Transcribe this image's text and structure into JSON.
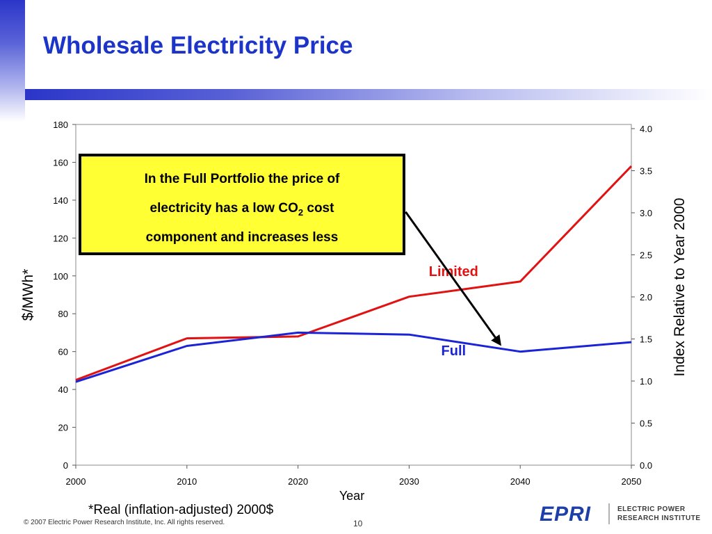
{
  "slide": {
    "title": "Wholesale Electricity Price",
    "footnote": "*Real (inflation-adjusted) 2000$",
    "copyright": "© 2007 Electric Power Research Institute, Inc. All rights reserved.",
    "page_number": "10",
    "logo": {
      "mark": "EPRI",
      "line1": "ELECTRIC POWER",
      "line2": "RESEARCH INSTITUTE"
    }
  },
  "callout": {
    "line1": "In the Full Portfolio the price of",
    "line2_prefix": "electricity has a low CO",
    "line2_sub": "2",
    "line2_suffix": " cost",
    "line3": "component and increases less"
  },
  "chart_data": {
    "type": "line",
    "x": [
      2000,
      2010,
      2020,
      2030,
      2040,
      2050
    ],
    "xlabel": "Year",
    "ylabel": "$/MWh*",
    "ylim": [
      0,
      180
    ],
    "yticks": [
      0,
      20,
      40,
      60,
      80,
      100,
      120,
      140,
      160,
      180
    ],
    "y2label": "Index Relative to Year 2000",
    "y2ticks": [
      "0.0",
      "0.5",
      "1.0",
      "1.5",
      "2.0",
      "2.5",
      "3.0",
      "3.5",
      "4.0"
    ],
    "grid": false,
    "series": [
      {
        "name": "Limited",
        "color": "#e01212",
        "values": [
          45,
          67,
          68,
          89,
          97,
          158
        ]
      },
      {
        "name": "Full",
        "color": "#1a24d6",
        "values": [
          44,
          63,
          70,
          69,
          60,
          65
        ]
      }
    ],
    "annotation_arrow": {
      "from": [
        2030,
        136
      ],
      "to": [
        2038,
        65
      ]
    }
  }
}
